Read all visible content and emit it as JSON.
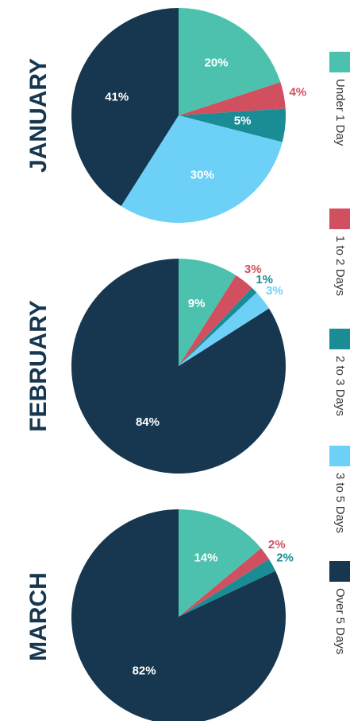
{
  "chart_data": [
    {
      "type": "pie",
      "title": "JANUARY",
      "categories": [
        "Under 1 Day",
        "1 to 2 Days",
        "2 to 3 Days",
        "3 to 5 Days",
        "Over 5 Days"
      ],
      "values": [
        20,
        4,
        5,
        30,
        41
      ],
      "value_labels": [
        "20%",
        "4%",
        "5%",
        "30%",
        "41%"
      ],
      "colors": [
        "#4cc2ae",
        "#d0505f",
        "#1a8c96",
        "#6dd0f6",
        "#16374f"
      ]
    },
    {
      "type": "pie",
      "title": "FEBRUARY",
      "categories": [
        "Under 1 Day",
        "1 to 2 Days",
        "2 to 3 Days",
        "3 to 5 Days",
        "Over 5 Days"
      ],
      "values": [
        9,
        3,
        1,
        3,
        84
      ],
      "value_labels": [
        "9%",
        "3%",
        "1%",
        "3%",
        "84%"
      ],
      "colors": [
        "#4cc2ae",
        "#d0505f",
        "#1a8c96",
        "#6dd0f6",
        "#16374f"
      ]
    },
    {
      "type": "pie",
      "title": "MARCH",
      "categories": [
        "Under 1 Day",
        "1 to 2 Days",
        "2 to 3 Days",
        "Over 5 Days"
      ],
      "values": [
        14,
        2,
        2,
        82
      ],
      "value_labels": [
        "14%",
        "2%",
        "2%",
        "82%"
      ],
      "colors": [
        "#4cc2ae",
        "#d0505f",
        "#1a8c96",
        "#16374f"
      ]
    }
  ]
}
